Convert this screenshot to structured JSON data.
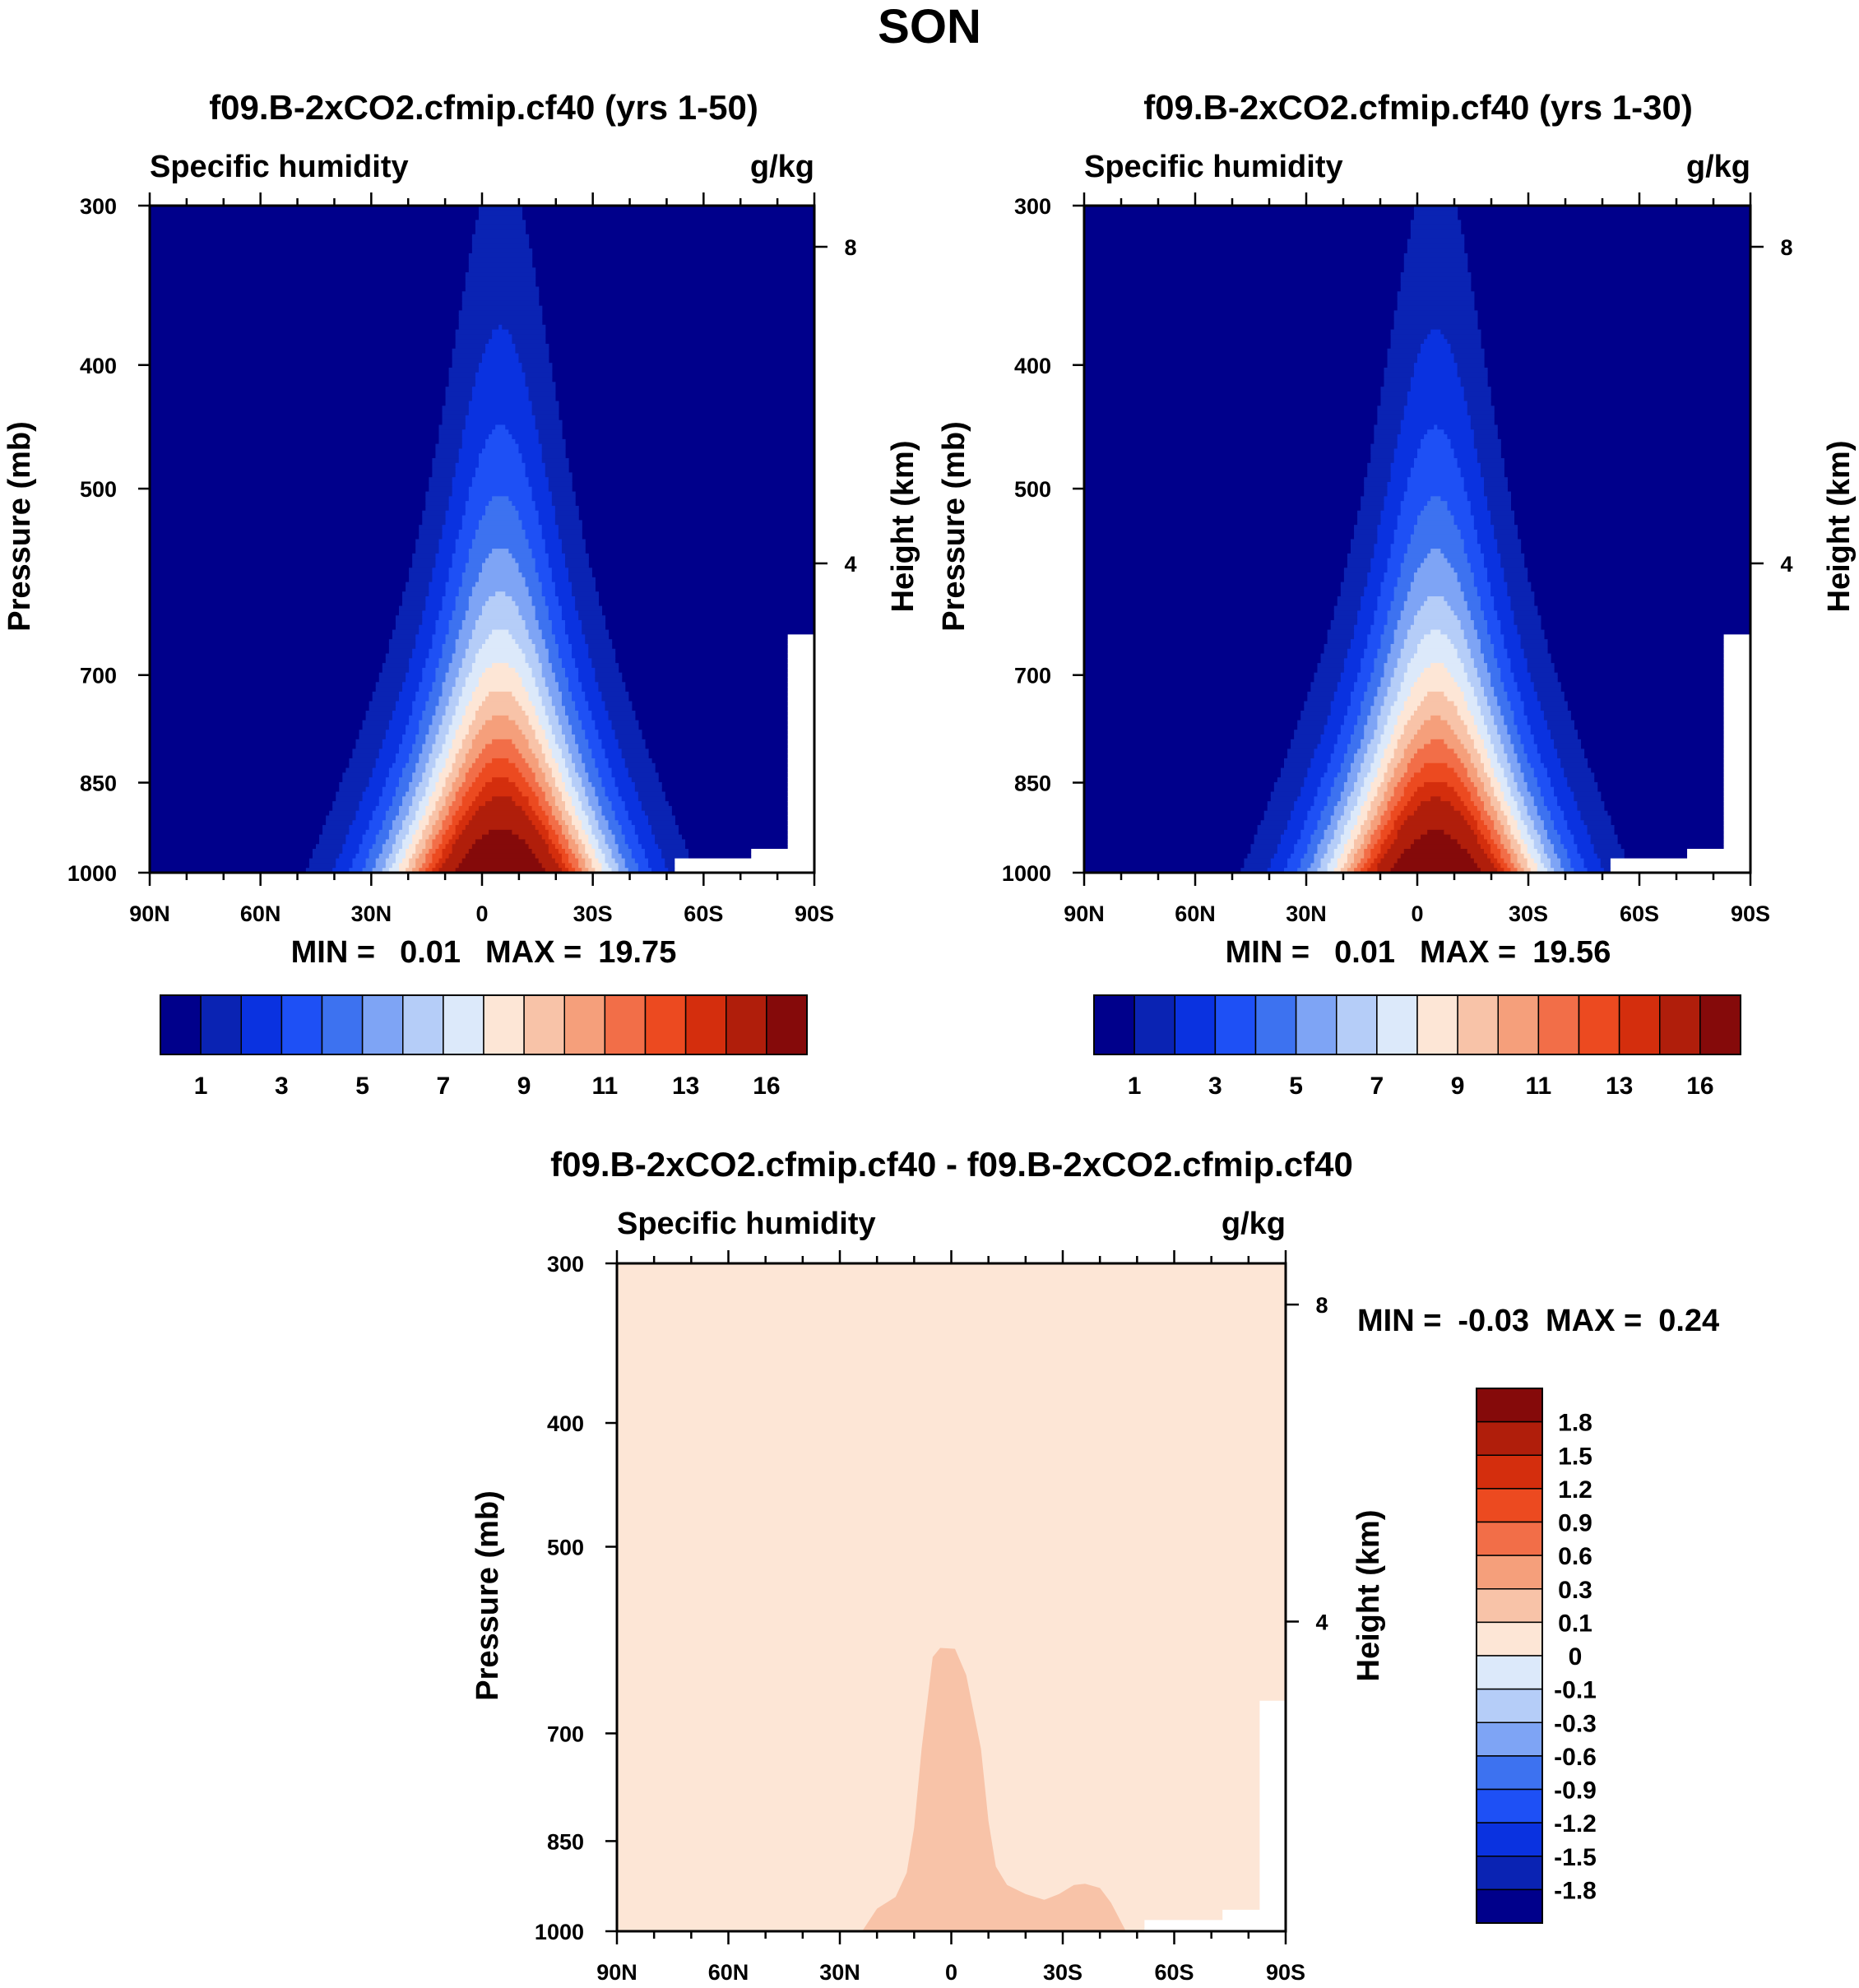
{
  "main_title": "SON",
  "chart_data": [
    {
      "type": "heatmap",
      "title": "f09.B-2xCO2.cfmip.cf40 (yrs 1-50)",
      "left_label": "Specific humidity",
      "right_label": "g/kg",
      "xlabel": "",
      "ylabel": "Pressure (mb)",
      "ylabel_right": "Height (km)",
      "x_ticks": [
        "90N",
        "60N",
        "30N",
        "0",
        "30S",
        "60S",
        "90S"
      ],
      "y_ticks": [
        "300",
        "400",
        "500",
        "700",
        "850",
        "1000"
      ],
      "y_ticks_right": [
        "8",
        "4"
      ],
      "ylim": [
        1000,
        300
      ],
      "stats": {
        "min_label": "MIN =",
        "min": "0.01",
        "max_label": "MAX =",
        "max": "19.75"
      },
      "colorbar_labels": [
        "1",
        "3",
        "5",
        "7",
        "9",
        "11",
        "13",
        "16"
      ],
      "peak_lat": -5,
      "peak_value": 19.75
    },
    {
      "type": "heatmap",
      "title": "f09.B-2xCO2.cfmip.cf40 (yrs 1-30)",
      "left_label": "Specific humidity",
      "right_label": "g/kg",
      "xlabel": "",
      "ylabel": "Pressure (mb)",
      "ylabel_right": "Height (km)",
      "x_ticks": [
        "90N",
        "60N",
        "30N",
        "0",
        "30S",
        "60S",
        "90S"
      ],
      "y_ticks": [
        "300",
        "400",
        "500",
        "700",
        "850",
        "1000"
      ],
      "y_ticks_right": [
        "8",
        "4"
      ],
      "ylim": [
        1000,
        300
      ],
      "stats": {
        "min_label": "MIN =",
        "min": "0.01",
        "max_label": "MAX =",
        "max": "19.56"
      },
      "colorbar_labels": [
        "1",
        "3",
        "5",
        "7",
        "9",
        "11",
        "13",
        "16"
      ],
      "peak_lat": -5,
      "peak_value": 19.56
    },
    {
      "type": "heatmap",
      "title": "f09.B-2xCO2.cfmip.cf40 - f09.B-2xCO2.cfmip.cf40",
      "left_label": "Specific humidity",
      "right_label": "g/kg",
      "xlabel": "",
      "ylabel": "Pressure (mb)",
      "ylabel_right": "Height (km)",
      "x_ticks": [
        "90N",
        "60N",
        "30N",
        "0",
        "30S",
        "60S",
        "90S"
      ],
      "y_ticks": [
        "300",
        "400",
        "500",
        "700",
        "850",
        "1000"
      ],
      "y_ticks_right": [
        "8",
        "4"
      ],
      "ylim": [
        1000,
        300
      ],
      "stats": {
        "min_label": "MIN =",
        "min": "-0.03",
        "max_label": "MAX =",
        "max": "0.24"
      },
      "colorbar_labels": [
        "1.8",
        "1.5",
        "1.2",
        "0.9",
        "0.6",
        "0.3",
        "0.1",
        "0",
        "-0.1",
        "-0.3",
        "-0.6",
        "-0.9",
        "-1.2",
        "-1.5",
        "-1.8"
      ]
    }
  ],
  "palettes": {
    "humidity": [
      "#00008b",
      "#0a23b3",
      "#0a32e0",
      "#1e50f5",
      "#3d72f0",
      "#7ea4f5",
      "#b5cdf8",
      "#dce9fa",
      "#fde6d6",
      "#f8c3a8",
      "#f59f7b",
      "#f26e48",
      "#ec4a20",
      "#d42e0d",
      "#b01e0b",
      "#850a0a"
    ],
    "difference": [
      "#850a0a",
      "#b01e0b",
      "#d42e0d",
      "#ec4a20",
      "#f26e48",
      "#f59f7b",
      "#f8c3a8",
      "#fde6d6",
      "#dce9fa",
      "#b5cdf8",
      "#7ea4f5",
      "#3d72f0",
      "#1e50f5",
      "#0a32e0",
      "#0a23b3",
      "#00008b"
    ]
  }
}
